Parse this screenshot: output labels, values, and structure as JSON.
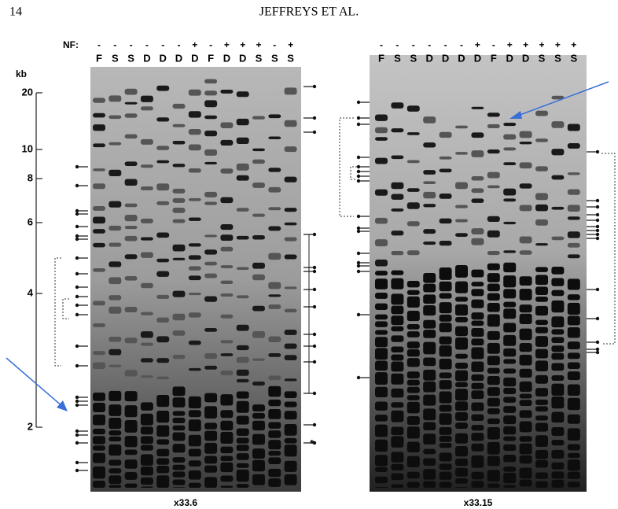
{
  "header": {
    "page_number": "14",
    "running_title": "JEFFREYS ET AL."
  },
  "nf_label": "NF:",
  "size_axis": {
    "unit": "kb",
    "labels": [
      "20",
      "10",
      "8",
      "6",
      "4",
      "2"
    ]
  },
  "gels": [
    {
      "caption": "x33.6",
      "lanes": [
        {
          "sign": "-",
          "label": "F"
        },
        {
          "sign": "-",
          "label": "S"
        },
        {
          "sign": "-",
          "label": "S"
        },
        {
          "sign": "-",
          "label": "D"
        },
        {
          "sign": "-",
          "label": "D"
        },
        {
          "sign": "-",
          "label": "D"
        },
        {
          "sign": "+",
          "label": "D"
        },
        {
          "sign": "-",
          "label": "F"
        },
        {
          "sign": "+",
          "label": "D"
        },
        {
          "sign": "+",
          "label": "D"
        },
        {
          "sign": "+",
          "label": "S"
        },
        {
          "sign": "-",
          "label": "S"
        },
        {
          "sign": "+",
          "label": "S"
        }
      ]
    },
    {
      "caption": "x33.15",
      "lanes": [
        {
          "sign": "-",
          "label": "F"
        },
        {
          "sign": "-",
          "label": "S"
        },
        {
          "sign": "-",
          "label": "S"
        },
        {
          "sign": "-",
          "label": "D"
        },
        {
          "sign": "-",
          "label": "D"
        },
        {
          "sign": "-",
          "label": "D"
        },
        {
          "sign": "+",
          "label": "D"
        },
        {
          "sign": "-",
          "label": "F"
        },
        {
          "sign": "+",
          "label": "D"
        },
        {
          "sign": "+",
          "label": "D"
        },
        {
          "sign": "+",
          "label": "S"
        },
        {
          "sign": "+",
          "label": "S"
        },
        {
          "sign": "+",
          "label": "S"
        }
      ]
    }
  ],
  "marker": "*"
}
